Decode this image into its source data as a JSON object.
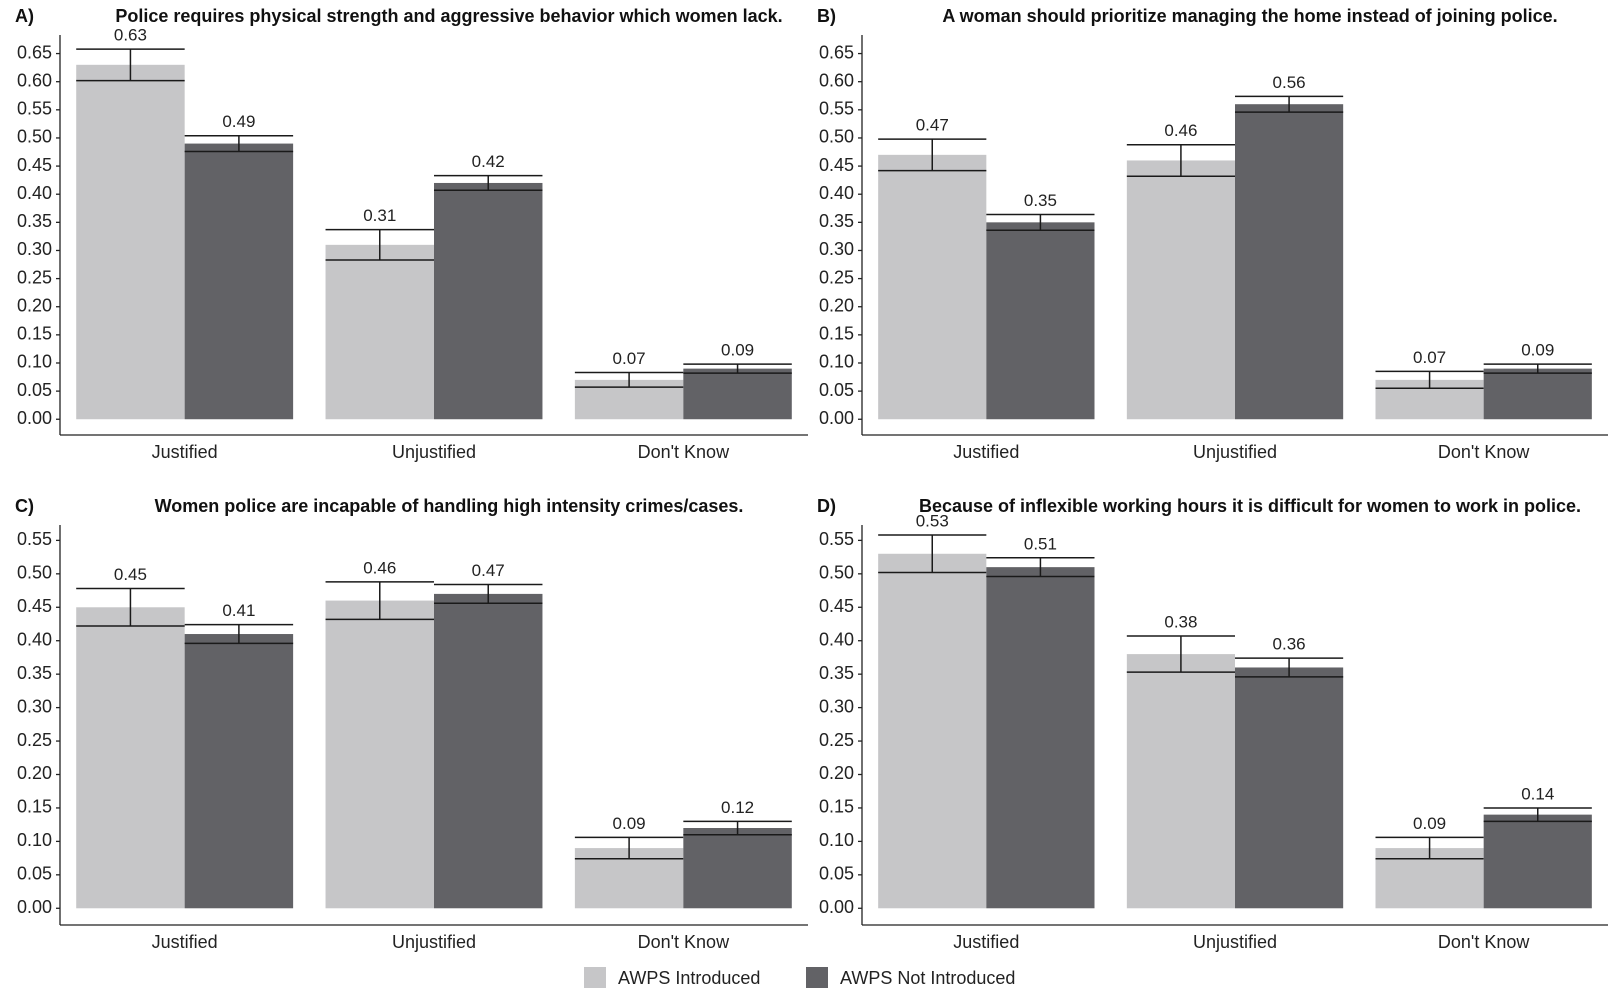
{
  "chart_data": [
    {
      "type": "bar",
      "panel": "A)",
      "title": "Police requires physical strength and aggressive behavior which women lack.",
      "categories": [
        "Justified",
        "Unjustified",
        "Don't Know"
      ],
      "series": [
        {
          "name": "AWPS Introduced",
          "color": "#c6c6c8",
          "values": [
            0.63,
            0.31,
            0.07
          ],
          "errors": [
            0.028,
            0.027,
            0.013
          ]
        },
        {
          "name": "AWPS Not Introduced",
          "color": "#626266",
          "values": [
            0.49,
            0.42,
            0.09
          ],
          "errors": [
            0.014,
            0.013,
            0.008
          ]
        }
      ],
      "ylim": [
        -0.028,
        0.683
      ],
      "yticks": [
        {
          "value": 0,
          "label": "0.00"
        },
        {
          "value": 0.05,
          "label": "0.05"
        },
        {
          "value": 0.1,
          "label": "0.10"
        },
        {
          "value": 0.15,
          "label": "0.15"
        },
        {
          "value": 0.2,
          "label": "0.20"
        },
        {
          "value": 0.25,
          "label": "0.25"
        },
        {
          "value": 0.3,
          "label": "0.30"
        },
        {
          "value": 0.35,
          "label": "0.35"
        },
        {
          "value": 0.4,
          "label": "0.40"
        },
        {
          "value": 0.45,
          "label": "0.45"
        },
        {
          "value": 0.5,
          "label": "0.50"
        },
        {
          "value": 0.55,
          "label": "0.55"
        },
        {
          "value": 0.6,
          "label": "0.60"
        },
        {
          "value": 0.65,
          "label": "0.65"
        }
      ]
    },
    {
      "type": "bar",
      "panel": "B)",
      "title": "A woman should prioritize managing the home instead of joining police.",
      "categories": [
        "Justified",
        "Unjustified",
        "Don't Know"
      ],
      "series": [
        {
          "color": "#c6c6c8",
          "values": [
            0.47,
            0.46,
            0.07
          ],
          "errors": [
            0.028,
            0.028,
            0.015
          ]
        },
        {
          "color": "#626266",
          "values": [
            0.35,
            0.56,
            0.09
          ],
          "errors": [
            0.014,
            0.014,
            0.008
          ]
        }
      ],
      "ylim": [
        -0.028,
        0.683
      ],
      "yticks": [
        {
          "value": 0,
          "label": "0.00"
        },
        {
          "value": 0.05,
          "label": "0.05"
        },
        {
          "value": 0.1,
          "label": "0.10"
        },
        {
          "value": 0.15,
          "label": "0.15"
        },
        {
          "value": 0.2,
          "label": "0.20"
        },
        {
          "value": 0.25,
          "label": "0.25"
        },
        {
          "value": 0.3,
          "label": "0.30"
        },
        {
          "value": 0.35,
          "label": "0.35"
        },
        {
          "value": 0.4,
          "label": "0.40"
        },
        {
          "value": 0.45,
          "label": "0.45"
        },
        {
          "value": 0.5,
          "label": "0.50"
        },
        {
          "value": 0.55,
          "label": "0.55"
        },
        {
          "value": 0.6,
          "label": "0.60"
        },
        {
          "value": 0.65,
          "label": "0.65"
        }
      ]
    },
    {
      "type": "bar",
      "panel": "C)",
      "title": "Women police are incapable of handling high intensity crimes/cases.",
      "categories": [
        "Justified",
        "Unjustified",
        "Don't Know"
      ],
      "series": [
        {
          "color": "#c6c6c8",
          "values": [
            0.45,
            0.46,
            0.09
          ],
          "errors": [
            0.028,
            0.028,
            0.016
          ]
        },
        {
          "color": "#626266",
          "values": [
            0.41,
            0.47,
            0.12
          ],
          "errors": [
            0.014,
            0.014,
            0.01
          ]
        }
      ],
      "ylim": [
        -0.025,
        0.573
      ],
      "yticks": [
        {
          "value": 0,
          "label": "0.00"
        },
        {
          "value": 0.05,
          "label": "0.05"
        },
        {
          "value": 0.1,
          "label": "0.10"
        },
        {
          "value": 0.15,
          "label": "0.15"
        },
        {
          "value": 0.2,
          "label": "0.20"
        },
        {
          "value": 0.25,
          "label": "0.25"
        },
        {
          "value": 0.3,
          "label": "0.30"
        },
        {
          "value": 0.35,
          "label": "0.35"
        },
        {
          "value": 0.4,
          "label": "0.40"
        },
        {
          "value": 0.45,
          "label": "0.45"
        },
        {
          "value": 0.5,
          "label": "0.50"
        },
        {
          "value": 0.55,
          "label": "0.55"
        }
      ]
    },
    {
      "type": "bar",
      "panel": "D)",
      "title": "Because of inflexible working hours it is difficult for women to work in police.",
      "categories": [
        "Justified",
        "Unjustified",
        "Don't Know"
      ],
      "series": [
        {
          "color": "#c6c6c8",
          "values": [
            0.53,
            0.38,
            0.09
          ],
          "errors": [
            0.028,
            0.027,
            0.016
          ]
        },
        {
          "color": "#626266",
          "values": [
            0.51,
            0.36,
            0.14
          ],
          "errors": [
            0.014,
            0.014,
            0.01
          ]
        }
      ],
      "ylim": [
        -0.025,
        0.573
      ],
      "yticks": [
        {
          "value": 0,
          "label": "0.00"
        },
        {
          "value": 0.05,
          "label": "0.05"
        },
        {
          "value": 0.1,
          "label": "0.10"
        },
        {
          "value": 0.15,
          "label": "0.15"
        },
        {
          "value": 0.2,
          "label": "0.20"
        },
        {
          "value": 0.25,
          "label": "0.25"
        },
        {
          "value": 0.3,
          "label": "0.30"
        },
        {
          "value": 0.35,
          "label": "0.35"
        },
        {
          "value": 0.4,
          "label": "0.40"
        },
        {
          "value": 0.45,
          "label": "0.45"
        },
        {
          "value": 0.5,
          "label": "0.50"
        },
        {
          "value": 0.55,
          "label": "0.55"
        }
      ]
    }
  ]
}
